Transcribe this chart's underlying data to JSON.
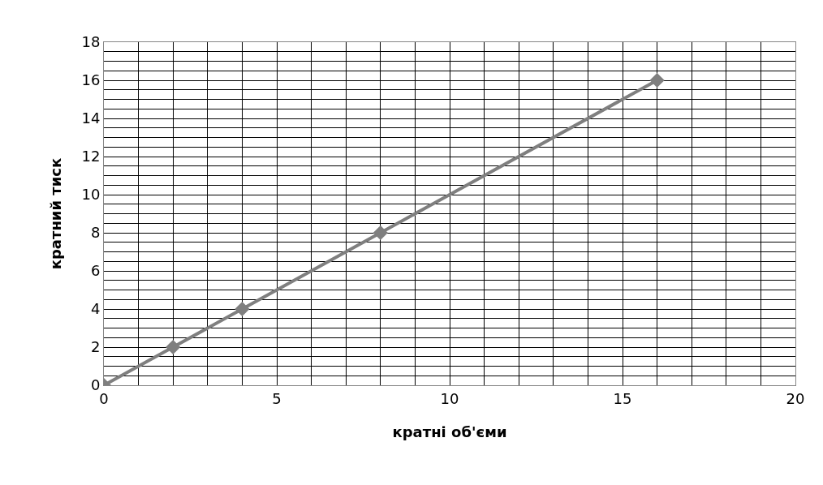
{
  "chart_data": {
    "type": "line",
    "xlabel": "кратні об'єми",
    "ylabel": "кратний тиск",
    "x": [
      0,
      2,
      4,
      8,
      16
    ],
    "series": [
      {
        "color": "#7f7f7f",
        "values": [
          0,
          2,
          4,
          8,
          16
        ]
      }
    ],
    "xlim": [
      0,
      20
    ],
    "xticks": [
      0,
      5,
      10,
      15,
      20
    ],
    "ylim": [
      0,
      18
    ],
    "yticks": [
      0,
      2,
      4,
      6,
      8,
      10,
      12,
      14,
      16,
      18
    ],
    "grid": true,
    "marker": "diamond",
    "line_style": "solid"
  }
}
